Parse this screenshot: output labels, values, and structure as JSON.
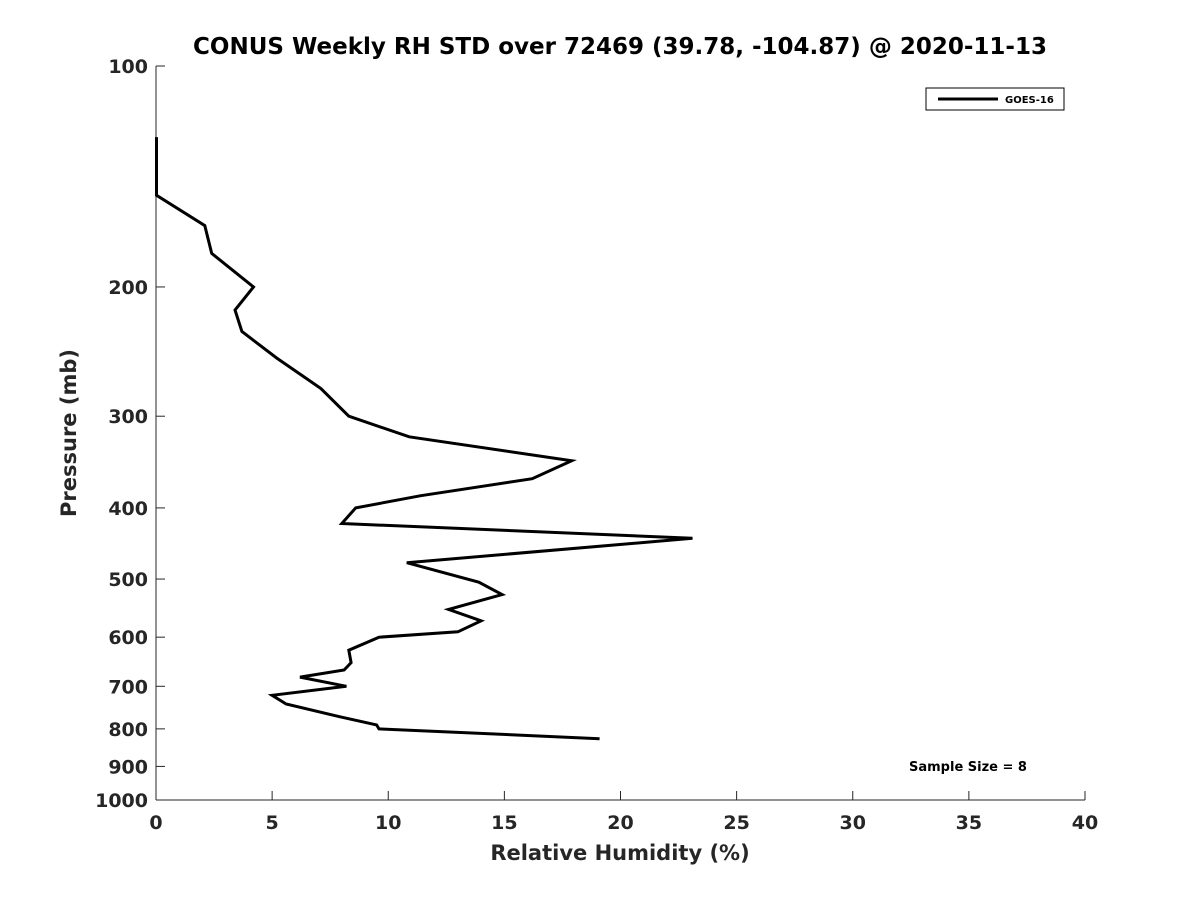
{
  "chart_data": {
    "type": "line",
    "title": "CONUS Weekly RH STD over 72469 (39.78, -104.87) @ 2020-11-13",
    "xlabel": "Relative Humidity (%)",
    "ylabel": "Pressure (mb)",
    "xlim": [
      0,
      40
    ],
    "ylim": [
      100,
      1000
    ],
    "yscale": "log",
    "y_reversed": true,
    "x_ticks": [
      "0",
      "5",
      "10",
      "15",
      "20",
      "25",
      "30",
      "35",
      "40"
    ],
    "y_ticks": [
      "100",
      "200",
      "300",
      "400",
      "500",
      "600",
      "700",
      "800",
      "900",
      "1000"
    ],
    "grid": false,
    "legend_position": "top-right",
    "series": [
      {
        "name": "GOES-16",
        "color": "#000000",
        "x": [
          0.02,
          0.02,
          0.02,
          2.1,
          2.4,
          4.2,
          3.4,
          3.7,
          5.2,
          7.1,
          8.3,
          10.9,
          17.9,
          16.2,
          11.4,
          8.6,
          8.0,
          23.1,
          10.8,
          13.9,
          14.9,
          12.6,
          14.0,
          13.0,
          9.6,
          8.3,
          8.4,
          8.1,
          6.2,
          8.2,
          5.0,
          5.6,
          7.9,
          9.5,
          9.6,
          19.1
        ],
        "y": [
          125,
          140,
          150,
          165,
          180,
          200,
          215,
          230,
          250,
          275,
          300,
          320,
          345,
          365,
          385,
          400,
          420,
          440,
          475,
          505,
          525,
          550,
          570,
          590,
          600,
          625,
          650,
          665,
          680,
          700,
          720,
          740,
          770,
          790,
          800,
          825
        ]
      }
    ],
    "annotation": "Sample Size = 8"
  }
}
